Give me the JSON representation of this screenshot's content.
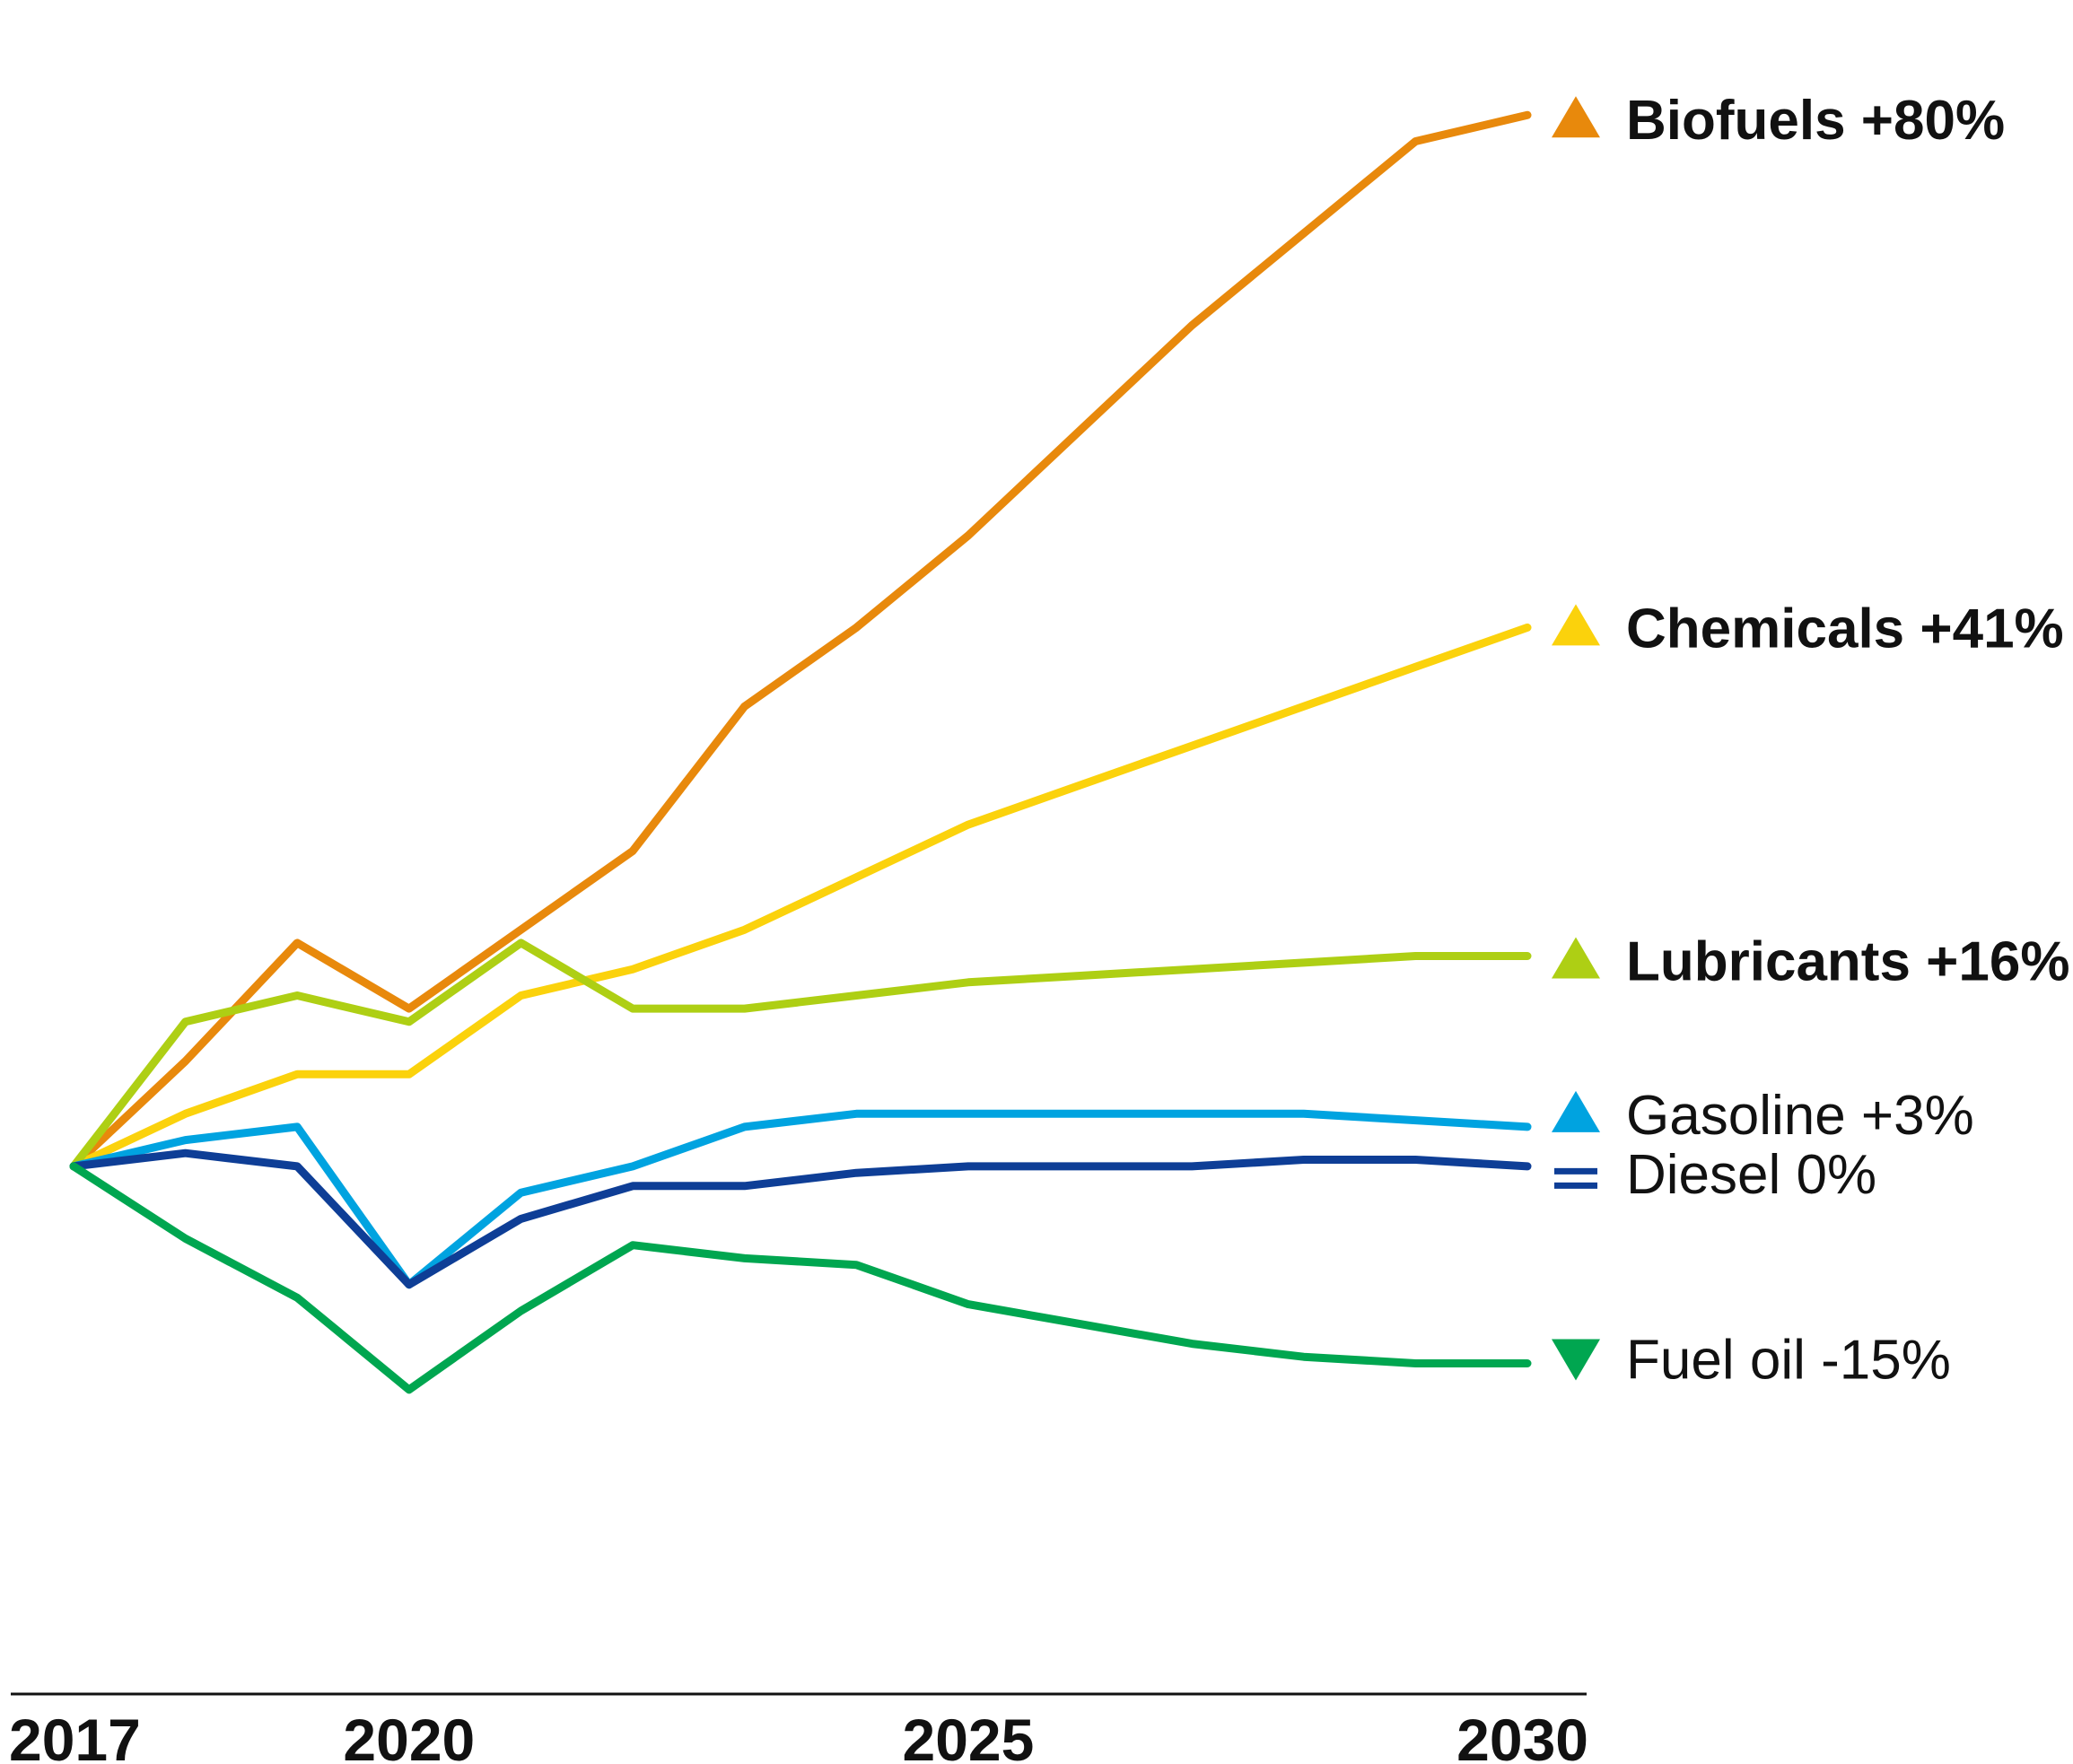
{
  "chart_data": {
    "type": "line",
    "title": "",
    "xlabel": "",
    "ylabel": "",
    "x": [
      2017,
      2018,
      2019,
      2020,
      2021,
      2022,
      2023,
      2024,
      2025,
      2026,
      2027,
      2028,
      2029,
      2030
    ],
    "xticks": [
      "2017",
      "2020",
      "2025",
      "2030"
    ],
    "xlim": [
      2017,
      2030
    ],
    "ylim": [
      -25,
      85
    ],
    "grid": false,
    "legend": "end-of-line labels, right",
    "series": [
      {
        "name": "Biofuels",
        "change": "+80%",
        "color": "#E8890C",
        "marker": "up",
        "bold": true,
        "values": [
          0,
          8,
          17,
          12,
          18,
          24,
          35,
          41,
          48,
          56,
          64,
          71,
          78,
          80
        ]
      },
      {
        "name": "Chemicals",
        "change": "+41%",
        "color": "#FBD20C",
        "marker": "up",
        "bold": true,
        "values": [
          0,
          4,
          7,
          7,
          13,
          15,
          18,
          22,
          26,
          29,
          32,
          35,
          38,
          41
        ]
      },
      {
        "name": "Lubricants",
        "change": "+16%",
        "color": "#AECF14",
        "marker": "up",
        "bold": true,
        "values": [
          0,
          11,
          13,
          11,
          17,
          12,
          12,
          13,
          14,
          14.5,
          15,
          15.5,
          16,
          16
        ]
      },
      {
        "name": "Gasoline",
        "change": "+3%",
        "color": "#00A3E0",
        "marker": "up",
        "bold": false,
        "values": [
          0,
          2,
          3,
          -9,
          -2,
          0,
          3,
          4,
          4,
          4,
          4,
          4,
          3.5,
          3
        ]
      },
      {
        "name": "Diesel",
        "change": "0%",
        "color": "#0E3E96",
        "marker": "equal",
        "bold": false,
        "values": [
          0,
          1,
          0,
          -9,
          -4,
          -1.5,
          -1.5,
          -0.5,
          0,
          0,
          0,
          0.5,
          0.5,
          0
        ]
      },
      {
        "name": "Fuel oil",
        "change": "-15%",
        "color": "#00A650",
        "marker": "down",
        "bold": false,
        "values": [
          0,
          -5.5,
          -10,
          -17,
          -11,
          -6,
          -7,
          -7.5,
          -10.5,
          -12,
          -13.5,
          -14.5,
          -15,
          -15
        ]
      }
    ]
  }
}
